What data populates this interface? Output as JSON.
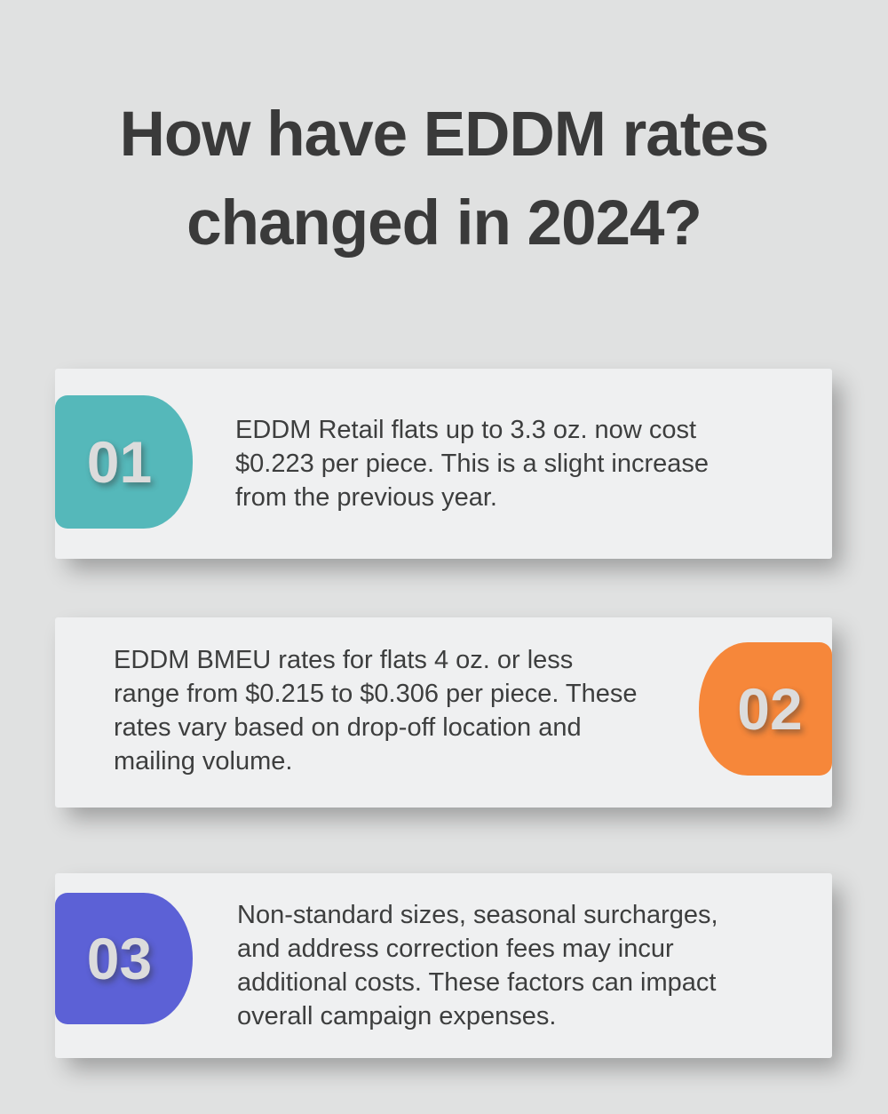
{
  "title": {
    "line1": "How have EDDM rates",
    "line2": "changed in 2024?"
  },
  "colors": {
    "page_background": "#e0e1e1",
    "card_background": "#eff0f1",
    "title_text": "#3a3a3a",
    "body_text": "#3d3e3e",
    "pill_number_text": "#dcdcdc",
    "pill_teal": "#55b8ba",
    "pill_orange": "#f6873a",
    "pill_purple": "#5c61d6"
  },
  "cards": [
    {
      "number": "01",
      "pill_color": "#55b8ba",
      "pill_side": "left",
      "lines": [
        "EDDM Retail flats up to 3.3 oz. now cost",
        "$0.223 per piece. This is a slight increase",
        "from the previous year."
      ]
    },
    {
      "number": "02",
      "pill_color": "#f6873a",
      "pill_side": "right",
      "lines": [
        "EDDM BMEU rates for flats 4 oz. or less",
        "range from $0.215 to $0.306 per piece. These",
        "rates vary based on drop-off location and",
        "mailing volume."
      ]
    },
    {
      "number": "03",
      "pill_color": "#5c61d6",
      "pill_side": "left",
      "lines": [
        "Non-standard sizes, seasonal surcharges,",
        "and address correction fees may incur",
        "additional costs. These factors can impact",
        "overall campaign expenses."
      ]
    }
  ]
}
